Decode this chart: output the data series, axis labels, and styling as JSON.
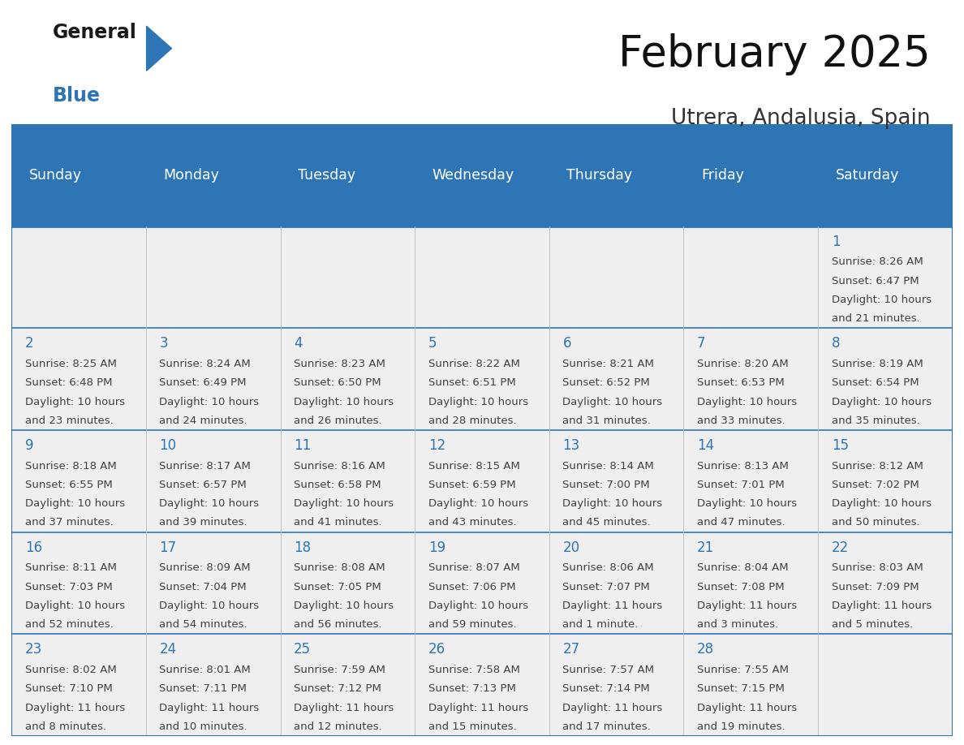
{
  "title": "February 2025",
  "subtitle": "Utrera, Andalusia, Spain",
  "header_bg": "#2E75B6",
  "header_text_color": "#FFFFFF",
  "day_names": [
    "Sunday",
    "Monday",
    "Tuesday",
    "Wednesday",
    "Thursday",
    "Friday",
    "Saturday"
  ],
  "cell_bg": "#EFEFEF",
  "line_color": "#2E75B6",
  "number_color": "#2E75B6",
  "text_color": "#404040",
  "days": [
    {
      "day": 1,
      "col": 6,
      "row": 0,
      "sunrise": "8:26 AM",
      "sunset": "6:47 PM",
      "daylight_h": "10 hours",
      "daylight_m": "and 21 minutes."
    },
    {
      "day": 2,
      "col": 0,
      "row": 1,
      "sunrise": "8:25 AM",
      "sunset": "6:48 PM",
      "daylight_h": "10 hours",
      "daylight_m": "and 23 minutes."
    },
    {
      "day": 3,
      "col": 1,
      "row": 1,
      "sunrise": "8:24 AM",
      "sunset": "6:49 PM",
      "daylight_h": "10 hours",
      "daylight_m": "and 24 minutes."
    },
    {
      "day": 4,
      "col": 2,
      "row": 1,
      "sunrise": "8:23 AM",
      "sunset": "6:50 PM",
      "daylight_h": "10 hours",
      "daylight_m": "and 26 minutes."
    },
    {
      "day": 5,
      "col": 3,
      "row": 1,
      "sunrise": "8:22 AM",
      "sunset": "6:51 PM",
      "daylight_h": "10 hours",
      "daylight_m": "and 28 minutes."
    },
    {
      "day": 6,
      "col": 4,
      "row": 1,
      "sunrise": "8:21 AM",
      "sunset": "6:52 PM",
      "daylight_h": "10 hours",
      "daylight_m": "and 31 minutes."
    },
    {
      "day": 7,
      "col": 5,
      "row": 1,
      "sunrise": "8:20 AM",
      "sunset": "6:53 PM",
      "daylight_h": "10 hours",
      "daylight_m": "and 33 minutes."
    },
    {
      "day": 8,
      "col": 6,
      "row": 1,
      "sunrise": "8:19 AM",
      "sunset": "6:54 PM",
      "daylight_h": "10 hours",
      "daylight_m": "and 35 minutes."
    },
    {
      "day": 9,
      "col": 0,
      "row": 2,
      "sunrise": "8:18 AM",
      "sunset": "6:55 PM",
      "daylight_h": "10 hours",
      "daylight_m": "and 37 minutes."
    },
    {
      "day": 10,
      "col": 1,
      "row": 2,
      "sunrise": "8:17 AM",
      "sunset": "6:57 PM",
      "daylight_h": "10 hours",
      "daylight_m": "and 39 minutes."
    },
    {
      "day": 11,
      "col": 2,
      "row": 2,
      "sunrise": "8:16 AM",
      "sunset": "6:58 PM",
      "daylight_h": "10 hours",
      "daylight_m": "and 41 minutes."
    },
    {
      "day": 12,
      "col": 3,
      "row": 2,
      "sunrise": "8:15 AM",
      "sunset": "6:59 PM",
      "daylight_h": "10 hours",
      "daylight_m": "and 43 minutes."
    },
    {
      "day": 13,
      "col": 4,
      "row": 2,
      "sunrise": "8:14 AM",
      "sunset": "7:00 PM",
      "daylight_h": "10 hours",
      "daylight_m": "and 45 minutes."
    },
    {
      "day": 14,
      "col": 5,
      "row": 2,
      "sunrise": "8:13 AM",
      "sunset": "7:01 PM",
      "daylight_h": "10 hours",
      "daylight_m": "and 47 minutes."
    },
    {
      "day": 15,
      "col": 6,
      "row": 2,
      "sunrise": "8:12 AM",
      "sunset": "7:02 PM",
      "daylight_h": "10 hours",
      "daylight_m": "and 50 minutes."
    },
    {
      "day": 16,
      "col": 0,
      "row": 3,
      "sunrise": "8:11 AM",
      "sunset": "7:03 PM",
      "daylight_h": "10 hours",
      "daylight_m": "and 52 minutes."
    },
    {
      "day": 17,
      "col": 1,
      "row": 3,
      "sunrise": "8:09 AM",
      "sunset": "7:04 PM",
      "daylight_h": "10 hours",
      "daylight_m": "and 54 minutes."
    },
    {
      "day": 18,
      "col": 2,
      "row": 3,
      "sunrise": "8:08 AM",
      "sunset": "7:05 PM",
      "daylight_h": "10 hours",
      "daylight_m": "and 56 minutes."
    },
    {
      "day": 19,
      "col": 3,
      "row": 3,
      "sunrise": "8:07 AM",
      "sunset": "7:06 PM",
      "daylight_h": "10 hours",
      "daylight_m": "and 59 minutes."
    },
    {
      "day": 20,
      "col": 4,
      "row": 3,
      "sunrise": "8:06 AM",
      "sunset": "7:07 PM",
      "daylight_h": "11 hours",
      "daylight_m": "and 1 minute."
    },
    {
      "day": 21,
      "col": 5,
      "row": 3,
      "sunrise": "8:04 AM",
      "sunset": "7:08 PM",
      "daylight_h": "11 hours",
      "daylight_m": "and 3 minutes."
    },
    {
      "day": 22,
      "col": 6,
      "row": 3,
      "sunrise": "8:03 AM",
      "sunset": "7:09 PM",
      "daylight_h": "11 hours",
      "daylight_m": "and 5 minutes."
    },
    {
      "day": 23,
      "col": 0,
      "row": 4,
      "sunrise": "8:02 AM",
      "sunset": "7:10 PM",
      "daylight_h": "11 hours",
      "daylight_m": "and 8 minutes."
    },
    {
      "day": 24,
      "col": 1,
      "row": 4,
      "sunrise": "8:01 AM",
      "sunset": "7:11 PM",
      "daylight_h": "11 hours",
      "daylight_m": "and 10 minutes."
    },
    {
      "day": 25,
      "col": 2,
      "row": 4,
      "sunrise": "7:59 AM",
      "sunset": "7:12 PM",
      "daylight_h": "11 hours",
      "daylight_m": "and 12 minutes."
    },
    {
      "day": 26,
      "col": 3,
      "row": 4,
      "sunrise": "7:58 AM",
      "sunset": "7:13 PM",
      "daylight_h": "11 hours",
      "daylight_m": "and 15 minutes."
    },
    {
      "day": 27,
      "col": 4,
      "row": 4,
      "sunrise": "7:57 AM",
      "sunset": "7:14 PM",
      "daylight_h": "11 hours",
      "daylight_m": "and 17 minutes."
    },
    {
      "day": 28,
      "col": 5,
      "row": 4,
      "sunrise": "7:55 AM",
      "sunset": "7:15 PM",
      "daylight_h": "11 hours",
      "daylight_m": "and 19 minutes."
    }
  ]
}
